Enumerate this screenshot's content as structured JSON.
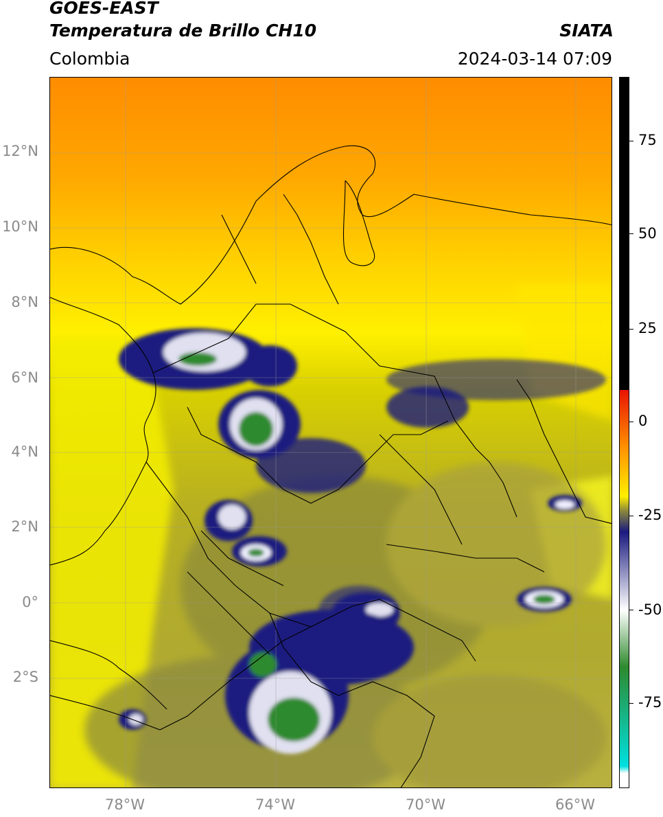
{
  "header": {
    "title_line1": "GOES-EAST",
    "title_line2": "Temperatura de Brillo CH10",
    "brand": "SIATA",
    "region": "Colombia",
    "timestamp": "2024-03-14 07:09"
  },
  "map": {
    "y_axis_labels": [
      "12°N",
      "10°N",
      "8°N",
      "6°N",
      "4°N",
      "2°N",
      "0°",
      "2°S"
    ],
    "x_axis_labels": [
      "78°W",
      "74°W",
      "70°W",
      "66°W"
    ],
    "lat_range": [
      -5,
      14
    ],
    "lon_range": [
      -80,
      -65
    ]
  },
  "colorbar": {
    "labels": [
      "75",
      "50",
      "25",
      "0",
      "-25",
      "-50",
      "-75"
    ],
    "colors": {
      "warmest": "#000000",
      "red": "#e81400",
      "orange": "#ff9000",
      "yellow": "#ffee00",
      "olive": "#8c8a3a",
      "navy": "#1a1a80",
      "white": "#ffffff",
      "green": "#2e8a2e",
      "cyan": "#00e0e0"
    }
  }
}
